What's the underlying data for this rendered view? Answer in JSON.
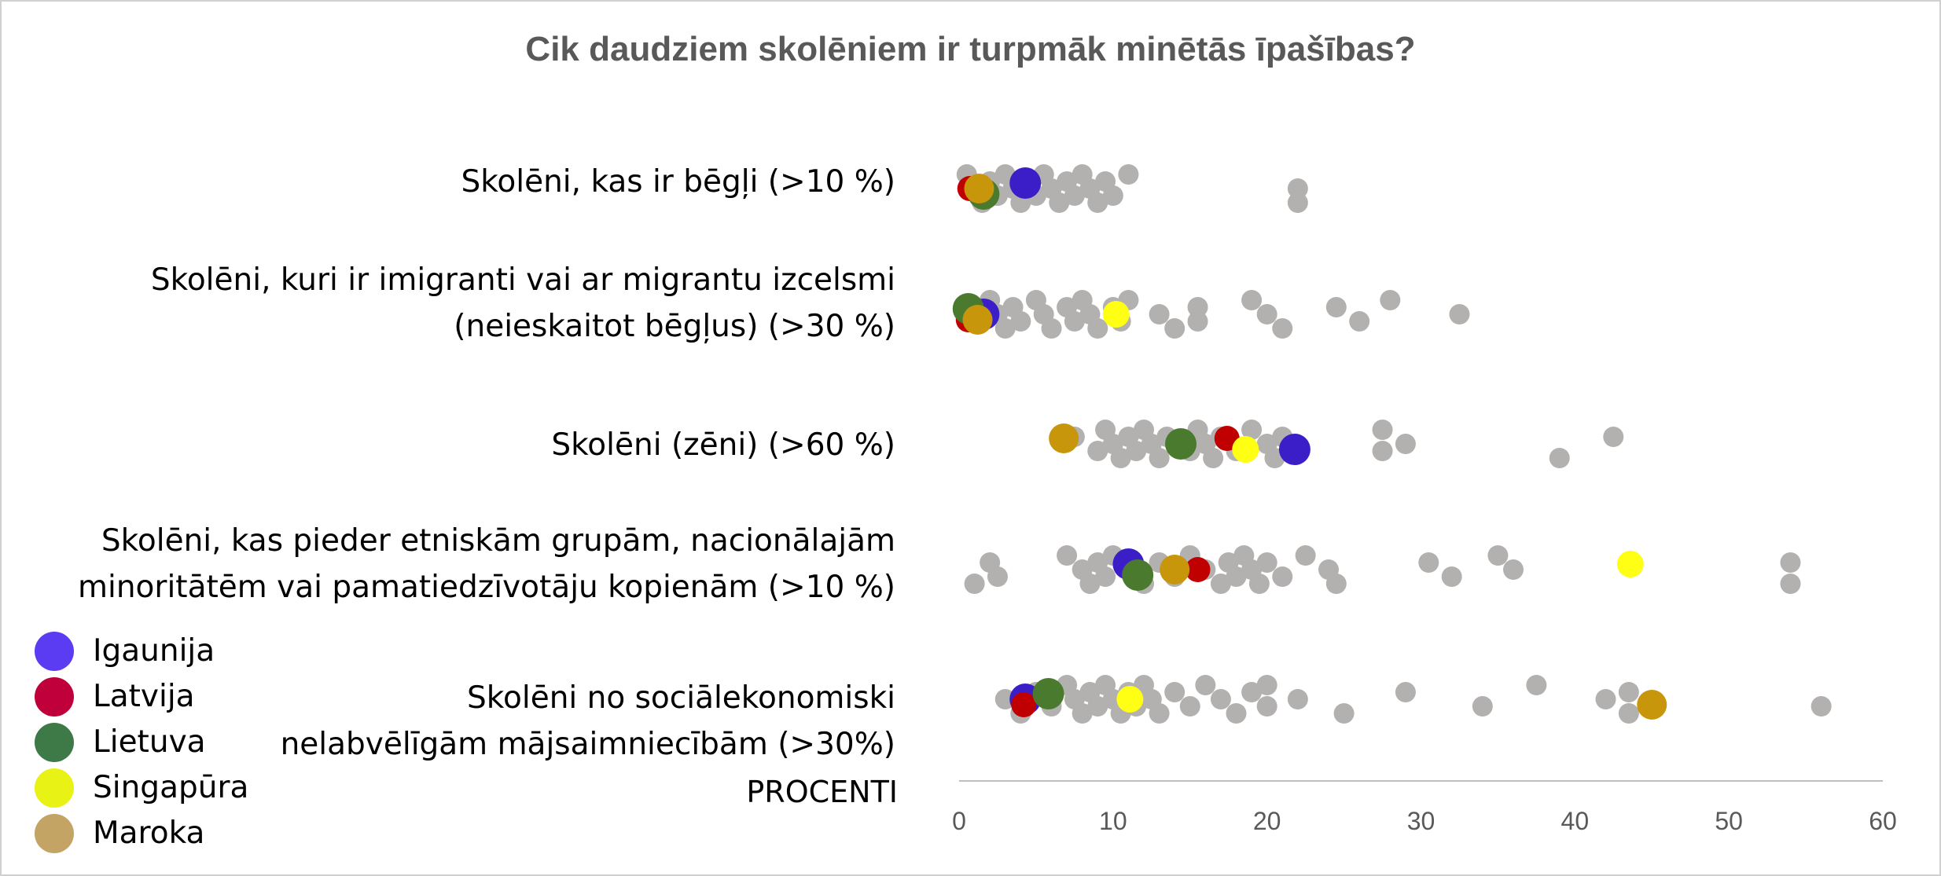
{
  "chart_data": {
    "type": "scatter",
    "title": "Cik daudziem skolēniem ir turpmāk minētās īpašības?",
    "xlabel": "PROCENTI",
    "xlim": [
      0,
      60
    ],
    "xticks": [
      "0",
      "10",
      "20",
      "30",
      "40",
      "50",
      "60"
    ],
    "grid": false,
    "legend_placement": "bottom-left",
    "categories": [
      {
        "lines": [
          "Skolēni, kas ir bēgļi (>10 %)"
        ]
      },
      {
        "lines": [
          "Skolēni, kuri ir imigranti vai ar migrantu izcelsmi",
          "(neieskaitot bēgļus) (>30 %)"
        ]
      },
      {
        "lines": [
          "Skolēni (zēni) (>60 %)"
        ]
      },
      {
        "lines": [
          "Skolēni, kas pieder etniskām grupām, nacionālajām",
          "minoritātēm vai pamatiedzīvotāju kopienām (>10 %)"
        ]
      },
      {
        "lines": [
          "Skolēni no sociālekonomiski",
          "nelabvēlīgām mājsaimniecībām (>30%)"
        ]
      }
    ],
    "other_color": "#b3b0b0",
    "other_countries": [
      [
        0.5,
        1,
        1.5,
        2,
        2.5,
        3,
        3.5,
        4,
        4.5,
        5,
        5.5,
        6,
        6.5,
        7,
        7.5,
        8,
        8.5,
        9,
        9.5,
        10,
        11,
        22,
        22
      ],
      [
        1.5,
        2,
        2.5,
        3,
        3.5,
        4,
        5,
        5.5,
        6,
        7,
        7.5,
        8,
        8.5,
        9,
        10,
        10.5,
        11,
        13,
        14,
        15.5,
        15.5,
        19,
        20,
        21,
        24.5,
        26,
        28,
        32.5
      ],
      [
        7.5,
        9,
        9.5,
        10,
        10.5,
        11,
        11.5,
        12,
        12.5,
        13,
        13.5,
        15,
        15.5,
        16,
        16.5,
        17,
        18,
        19,
        20,
        20.5,
        21,
        27.5,
        27.5,
        29,
        39,
        42.5
      ],
      [
        1,
        2,
        2.5,
        7,
        8,
        8.5,
        9,
        9.5,
        10,
        11,
        12,
        13,
        14,
        15,
        16,
        17,
        17.5,
        18,
        18.5,
        19,
        19.5,
        20,
        21,
        22.5,
        24,
        24.5,
        30.5,
        32,
        35,
        36,
        54,
        54
      ],
      [
        3,
        4,
        5,
        6,
        7,
        7.5,
        8,
        8.5,
        9,
        9.5,
        10,
        10.5,
        11,
        11.5,
        12,
        12.5,
        13,
        14,
        15,
        16,
        17,
        18,
        19,
        20,
        20,
        22,
        25,
        29,
        34,
        37.5,
        42,
        43.5,
        43.5,
        56
      ]
    ],
    "series": [
      {
        "name": "Igaunija",
        "color": "#3c1ec8",
        "legend_color": "#5b3cf2",
        "values": [
          4.3,
          1.6,
          21.8,
          11,
          4.3
        ]
      },
      {
        "name": "Latvija",
        "color": "#c00000",
        "legend_color": "#c0003a",
        "values": [
          0.7,
          0.6,
          17.4,
          15.5,
          4.2
        ]
      },
      {
        "name": "Lietuva",
        "color": "#4a7a2e",
        "legend_color": "#3d7a48",
        "values": [
          1.6,
          0.6,
          14.4,
          11.6,
          5.8
        ]
      },
      {
        "name": "Singapūra",
        "color": "#ffff14",
        "legend_color": "#e8f214",
        "values": [
          null,
          10.2,
          18.6,
          43.6,
          11.1
        ]
      },
      {
        "name": "Maroka",
        "color": "#c8960a",
        "legend_color": "#c3a465",
        "values": [
          1.3,
          1.2,
          6.8,
          14,
          45
        ]
      }
    ]
  }
}
